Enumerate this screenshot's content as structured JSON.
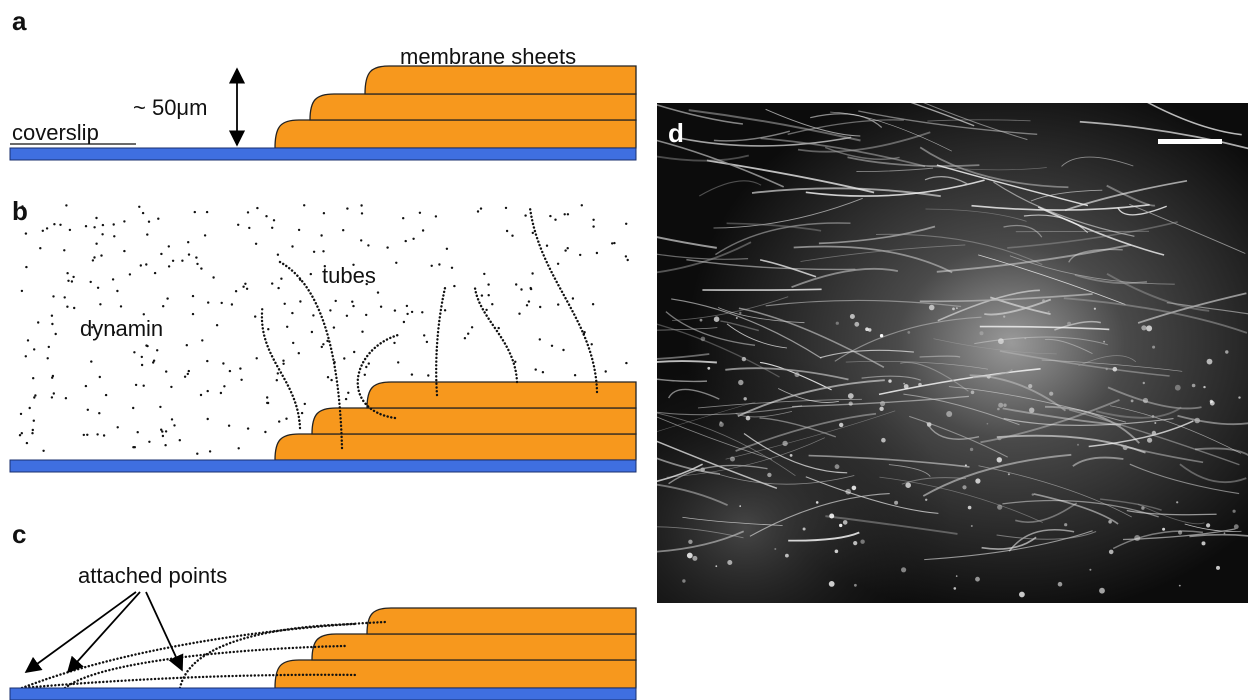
{
  "panel_a": {
    "label": "a",
    "membrane_sheets": "membrane sheets",
    "height": "~ 50μm",
    "coverslip": "coverslip"
  },
  "panel_b": {
    "label": "b",
    "tubes": "tubes",
    "dynamin": "dynamin"
  },
  "panel_c": {
    "label": "c",
    "attached_points": "attached points"
  },
  "panel_d": {
    "label": "d"
  }
}
